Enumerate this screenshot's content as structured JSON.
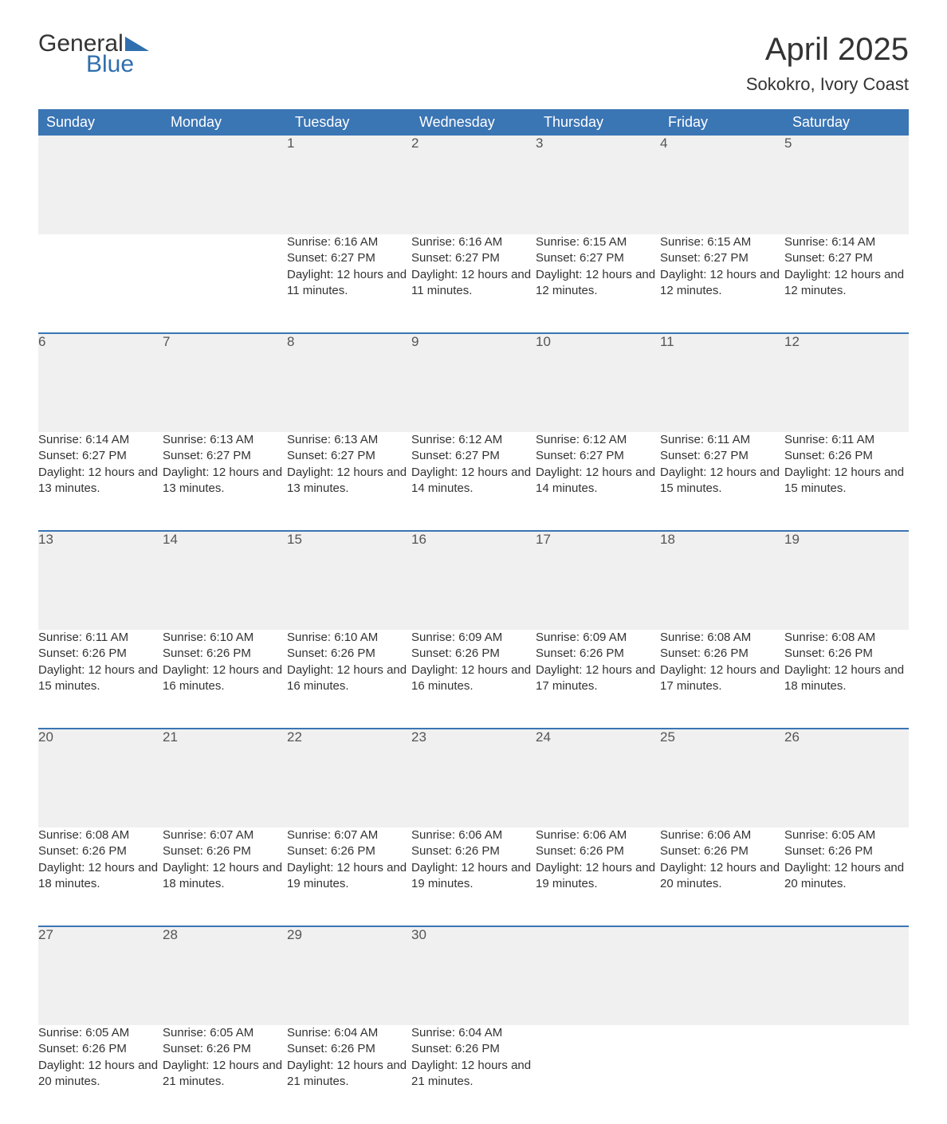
{
  "logo": {
    "text1": "General",
    "text2": "Blue",
    "icon_color": "#2f6fae"
  },
  "title": "April 2025",
  "location": "Sokokro, Ivory Coast",
  "colors": {
    "header_bg": "#3a75b4",
    "header_text": "#ffffff",
    "daynum_bg": "#f0f0f0",
    "row_border": "#3a75b4",
    "body_text": "#333333"
  },
  "weekdays": [
    "Sunday",
    "Monday",
    "Tuesday",
    "Wednesday",
    "Thursday",
    "Friday",
    "Saturday"
  ],
  "weeks": [
    [
      null,
      null,
      {
        "day": "1",
        "sunrise": "Sunrise: 6:16 AM",
        "sunset": "Sunset: 6:27 PM",
        "daylight": "Daylight: 12 hours and 11 minutes."
      },
      {
        "day": "2",
        "sunrise": "Sunrise: 6:16 AM",
        "sunset": "Sunset: 6:27 PM",
        "daylight": "Daylight: 12 hours and 11 minutes."
      },
      {
        "day": "3",
        "sunrise": "Sunrise: 6:15 AM",
        "sunset": "Sunset: 6:27 PM",
        "daylight": "Daylight: 12 hours and 12 minutes."
      },
      {
        "day": "4",
        "sunrise": "Sunrise: 6:15 AM",
        "sunset": "Sunset: 6:27 PM",
        "daylight": "Daylight: 12 hours and 12 minutes."
      },
      {
        "day": "5",
        "sunrise": "Sunrise: 6:14 AM",
        "sunset": "Sunset: 6:27 PM",
        "daylight": "Daylight: 12 hours and 12 minutes."
      }
    ],
    [
      {
        "day": "6",
        "sunrise": "Sunrise: 6:14 AM",
        "sunset": "Sunset: 6:27 PM",
        "daylight": "Daylight: 12 hours and 13 minutes."
      },
      {
        "day": "7",
        "sunrise": "Sunrise: 6:13 AM",
        "sunset": "Sunset: 6:27 PM",
        "daylight": "Daylight: 12 hours and 13 minutes."
      },
      {
        "day": "8",
        "sunrise": "Sunrise: 6:13 AM",
        "sunset": "Sunset: 6:27 PM",
        "daylight": "Daylight: 12 hours and 13 minutes."
      },
      {
        "day": "9",
        "sunrise": "Sunrise: 6:12 AM",
        "sunset": "Sunset: 6:27 PM",
        "daylight": "Daylight: 12 hours and 14 minutes."
      },
      {
        "day": "10",
        "sunrise": "Sunrise: 6:12 AM",
        "sunset": "Sunset: 6:27 PM",
        "daylight": "Daylight: 12 hours and 14 minutes."
      },
      {
        "day": "11",
        "sunrise": "Sunrise: 6:11 AM",
        "sunset": "Sunset: 6:27 PM",
        "daylight": "Daylight: 12 hours and 15 minutes."
      },
      {
        "day": "12",
        "sunrise": "Sunrise: 6:11 AM",
        "sunset": "Sunset: 6:26 PM",
        "daylight": "Daylight: 12 hours and 15 minutes."
      }
    ],
    [
      {
        "day": "13",
        "sunrise": "Sunrise: 6:11 AM",
        "sunset": "Sunset: 6:26 PM",
        "daylight": "Daylight: 12 hours and 15 minutes."
      },
      {
        "day": "14",
        "sunrise": "Sunrise: 6:10 AM",
        "sunset": "Sunset: 6:26 PM",
        "daylight": "Daylight: 12 hours and 16 minutes."
      },
      {
        "day": "15",
        "sunrise": "Sunrise: 6:10 AM",
        "sunset": "Sunset: 6:26 PM",
        "daylight": "Daylight: 12 hours and 16 minutes."
      },
      {
        "day": "16",
        "sunrise": "Sunrise: 6:09 AM",
        "sunset": "Sunset: 6:26 PM",
        "daylight": "Daylight: 12 hours and 16 minutes."
      },
      {
        "day": "17",
        "sunrise": "Sunrise: 6:09 AM",
        "sunset": "Sunset: 6:26 PM",
        "daylight": "Daylight: 12 hours and 17 minutes."
      },
      {
        "day": "18",
        "sunrise": "Sunrise: 6:08 AM",
        "sunset": "Sunset: 6:26 PM",
        "daylight": "Daylight: 12 hours and 17 minutes."
      },
      {
        "day": "19",
        "sunrise": "Sunrise: 6:08 AM",
        "sunset": "Sunset: 6:26 PM",
        "daylight": "Daylight: 12 hours and 18 minutes."
      }
    ],
    [
      {
        "day": "20",
        "sunrise": "Sunrise: 6:08 AM",
        "sunset": "Sunset: 6:26 PM",
        "daylight": "Daylight: 12 hours and 18 minutes."
      },
      {
        "day": "21",
        "sunrise": "Sunrise: 6:07 AM",
        "sunset": "Sunset: 6:26 PM",
        "daylight": "Daylight: 12 hours and 18 minutes."
      },
      {
        "day": "22",
        "sunrise": "Sunrise: 6:07 AM",
        "sunset": "Sunset: 6:26 PM",
        "daylight": "Daylight: 12 hours and 19 minutes."
      },
      {
        "day": "23",
        "sunrise": "Sunrise: 6:06 AM",
        "sunset": "Sunset: 6:26 PM",
        "daylight": "Daylight: 12 hours and 19 minutes."
      },
      {
        "day": "24",
        "sunrise": "Sunrise: 6:06 AM",
        "sunset": "Sunset: 6:26 PM",
        "daylight": "Daylight: 12 hours and 19 minutes."
      },
      {
        "day": "25",
        "sunrise": "Sunrise: 6:06 AM",
        "sunset": "Sunset: 6:26 PM",
        "daylight": "Daylight: 12 hours and 20 minutes."
      },
      {
        "day": "26",
        "sunrise": "Sunrise: 6:05 AM",
        "sunset": "Sunset: 6:26 PM",
        "daylight": "Daylight: 12 hours and 20 minutes."
      }
    ],
    [
      {
        "day": "27",
        "sunrise": "Sunrise: 6:05 AM",
        "sunset": "Sunset: 6:26 PM",
        "daylight": "Daylight: 12 hours and 20 minutes."
      },
      {
        "day": "28",
        "sunrise": "Sunrise: 6:05 AM",
        "sunset": "Sunset: 6:26 PM",
        "daylight": "Daylight: 12 hours and 21 minutes."
      },
      {
        "day": "29",
        "sunrise": "Sunrise: 6:04 AM",
        "sunset": "Sunset: 6:26 PM",
        "daylight": "Daylight: 12 hours and 21 minutes."
      },
      {
        "day": "30",
        "sunrise": "Sunrise: 6:04 AM",
        "sunset": "Sunset: 6:26 PM",
        "daylight": "Daylight: 12 hours and 21 minutes."
      },
      null,
      null,
      null
    ]
  ]
}
